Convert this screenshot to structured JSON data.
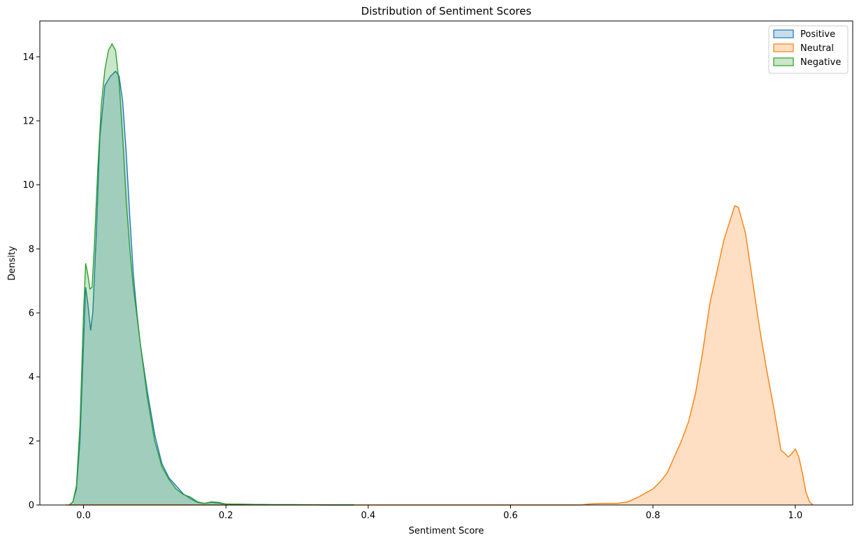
{
  "chart_data": {
    "type": "area",
    "title": "Distribution of Sentiment Scores",
    "xlabel": "Sentiment Score",
    "ylabel": "Density",
    "xlim": [
      -0.0614,
      1.0807
    ],
    "ylim": [
      0,
      15.12
    ],
    "xticks": [
      0.0,
      0.2,
      0.4,
      0.6,
      0.8,
      1.0
    ],
    "xtick_labels": [
      "0.0",
      "0.2",
      "0.4",
      "0.6",
      "0.8",
      "1.0"
    ],
    "yticks": [
      0,
      2,
      4,
      6,
      8,
      10,
      12,
      14
    ],
    "ytick_labels": [
      "0",
      "2",
      "4",
      "6",
      "8",
      "10",
      "12",
      "14"
    ],
    "grid": false,
    "legend": "top-right",
    "series": [
      {
        "name": "Positive",
        "color": "#1f77b4",
        "points": [
          [
            -0.02,
            0.0
          ],
          [
            -0.015,
            0.1
          ],
          [
            -0.01,
            0.5
          ],
          [
            -0.005,
            2.0
          ],
          [
            0.0,
            5.0
          ],
          [
            0.003,
            6.8
          ],
          [
            0.006,
            6.3
          ],
          [
            0.01,
            5.45
          ],
          [
            0.013,
            6.0
          ],
          [
            0.018,
            8.5
          ],
          [
            0.023,
            11.5
          ],
          [
            0.03,
            13.1
          ],
          [
            0.038,
            13.4
          ],
          [
            0.045,
            13.55
          ],
          [
            0.05,
            13.4
          ],
          [
            0.055,
            12.6
          ],
          [
            0.06,
            11.0
          ],
          [
            0.065,
            9.0
          ],
          [
            0.07,
            7.2
          ],
          [
            0.075,
            6.0
          ],
          [
            0.08,
            5.0
          ],
          [
            0.09,
            3.5
          ],
          [
            0.1,
            2.2
          ],
          [
            0.11,
            1.3
          ],
          [
            0.12,
            0.85
          ],
          [
            0.13,
            0.6
          ],
          [
            0.14,
            0.35
          ],
          [
            0.15,
            0.2
          ],
          [
            0.16,
            0.08
          ],
          [
            0.17,
            0.05
          ],
          [
            0.18,
            0.08
          ],
          [
            0.19,
            0.06
          ],
          [
            0.2,
            0.03
          ],
          [
            0.23,
            0.02
          ],
          [
            0.27,
            0.01
          ],
          [
            0.3,
            0.01
          ],
          [
            0.35,
            0.0
          ],
          [
            0.38,
            0.0
          ]
        ]
      },
      {
        "name": "Neutral",
        "color": "#ff7f0e",
        "points": [
          [
            -0.025,
            0.0
          ],
          [
            0.0,
            0.0
          ],
          [
            0.2,
            0.0
          ],
          [
            0.4,
            0.0
          ],
          [
            0.6,
            0.0
          ],
          [
            0.7,
            0.0
          ],
          [
            0.71,
            0.03
          ],
          [
            0.73,
            0.05
          ],
          [
            0.75,
            0.05
          ],
          [
            0.765,
            0.1
          ],
          [
            0.78,
            0.25
          ],
          [
            0.79,
            0.38
          ],
          [
            0.8,
            0.5
          ],
          [
            0.81,
            0.72
          ],
          [
            0.82,
            1.0
          ],
          [
            0.83,
            1.5
          ],
          [
            0.84,
            2.0
          ],
          [
            0.85,
            2.6
          ],
          [
            0.86,
            3.5
          ],
          [
            0.87,
            4.8
          ],
          [
            0.88,
            6.3
          ],
          [
            0.89,
            7.3
          ],
          [
            0.9,
            8.3
          ],
          [
            0.91,
            9.0
          ],
          [
            0.915,
            9.35
          ],
          [
            0.92,
            9.3
          ],
          [
            0.93,
            8.5
          ],
          [
            0.94,
            7.0
          ],
          [
            0.95,
            5.5
          ],
          [
            0.96,
            4.2
          ],
          [
            0.97,
            3.0
          ],
          [
            0.98,
            1.7
          ],
          [
            0.985,
            1.62
          ],
          [
            0.99,
            1.5
          ],
          [
            0.995,
            1.6
          ],
          [
            1.0,
            1.75
          ],
          [
            1.005,
            1.5
          ],
          [
            1.01,
            1.0
          ],
          [
            1.015,
            0.4
          ],
          [
            1.02,
            0.1
          ],
          [
            1.025,
            0.0
          ]
        ]
      },
      {
        "name": "Negative",
        "color": "#2ca02c",
        "points": [
          [
            -0.02,
            0.0
          ],
          [
            -0.015,
            0.1
          ],
          [
            -0.01,
            0.6
          ],
          [
            -0.005,
            2.5
          ],
          [
            0.0,
            6.0
          ],
          [
            0.003,
            7.55
          ],
          [
            0.006,
            7.2
          ],
          [
            0.009,
            6.75
          ],
          [
            0.012,
            6.8
          ],
          [
            0.015,
            8.0
          ],
          [
            0.02,
            10.5
          ],
          [
            0.025,
            12.5
          ],
          [
            0.03,
            13.6
          ],
          [
            0.035,
            14.2
          ],
          [
            0.04,
            14.4
          ],
          [
            0.045,
            14.2
          ],
          [
            0.05,
            13.2
          ],
          [
            0.055,
            11.5
          ],
          [
            0.06,
            9.5
          ],
          [
            0.065,
            8.0
          ],
          [
            0.07,
            6.8
          ],
          [
            0.08,
            5.0
          ],
          [
            0.09,
            3.3
          ],
          [
            0.1,
            2.0
          ],
          [
            0.11,
            1.2
          ],
          [
            0.12,
            0.8
          ],
          [
            0.13,
            0.5
          ],
          [
            0.14,
            0.33
          ],
          [
            0.15,
            0.25
          ],
          [
            0.16,
            0.1
          ],
          [
            0.17,
            0.05
          ],
          [
            0.18,
            0.1
          ],
          [
            0.19,
            0.08
          ],
          [
            0.2,
            0.03
          ],
          [
            0.23,
            0.02
          ],
          [
            0.27,
            0.01
          ],
          [
            0.3,
            0.01
          ],
          [
            0.35,
            0.0
          ],
          [
            0.38,
            0.0
          ]
        ]
      }
    ]
  }
}
